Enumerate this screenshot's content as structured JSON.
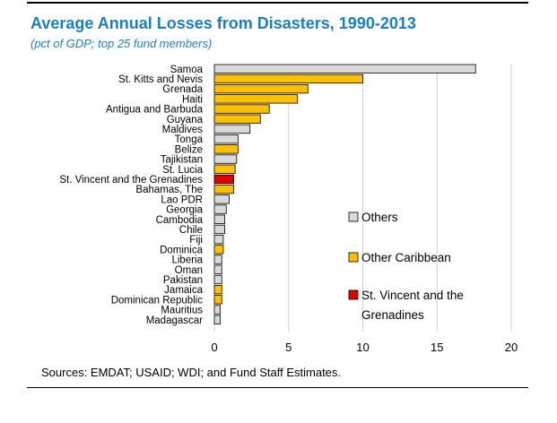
{
  "chart_data": {
    "type": "bar",
    "orientation": "horizontal",
    "title": "Average Annual Losses from Disasters, 1990-2013",
    "subtitle": "(pct of GDP; top 25 fund members)",
    "source": "Sources: EMDAT; USAID; WDI; and Fund Staff Estimates.",
    "xlim": [
      0,
      20
    ],
    "xticks": [
      0,
      5,
      10,
      15,
      20
    ],
    "grid": "vertical",
    "legend_position": "right",
    "colors": {
      "Others": "#d9d9d9",
      "Other Caribbean": "#ffc000",
      "St. Vincent and the Grenadines": "#e00000"
    },
    "legend": [
      {
        "group": "Others",
        "lines": [
          "Others"
        ]
      },
      {
        "group": "Other Caribbean",
        "lines": [
          "Other Caribbean"
        ]
      },
      {
        "group": "St. Vincent and the Grenadines",
        "lines": [
          "St. Vincent and the",
          "Grenadines"
        ]
      }
    ],
    "bars": [
      {
        "label": "Samoa",
        "value": 17.6,
        "group": "Others"
      },
      {
        "label": "St. Kitts and Nevis",
        "value": 10.0,
        "group": "Other Caribbean"
      },
      {
        "label": "Grenada",
        "value": 6.3,
        "group": "Other Caribbean"
      },
      {
        "label": "Haiti",
        "value": 5.6,
        "group": "Other Caribbean"
      },
      {
        "label": "Antigua and Barbuda",
        "value": 3.7,
        "group": "Other Caribbean"
      },
      {
        "label": "Guyana",
        "value": 3.1,
        "group": "Other Caribbean"
      },
      {
        "label": "Maldives",
        "value": 2.4,
        "group": "Others"
      },
      {
        "label": "Tonga",
        "value": 1.6,
        "group": "Others"
      },
      {
        "label": "Belize",
        "value": 1.6,
        "group": "Other Caribbean"
      },
      {
        "label": "Tajikistan",
        "value": 1.5,
        "group": "Others"
      },
      {
        "label": "St. Lucia",
        "value": 1.4,
        "group": "Other Caribbean"
      },
      {
        "label": "St. Vincent and the Grenadines",
        "value": 1.3,
        "group": "St. Vincent and the Grenadines"
      },
      {
        "label": "Bahamas, The",
        "value": 1.3,
        "group": "Other Caribbean"
      },
      {
        "label": "Lao PDR",
        "value": 1.0,
        "group": "Others"
      },
      {
        "label": "Georgia",
        "value": 0.8,
        "group": "Others"
      },
      {
        "label": "Cambodia",
        "value": 0.7,
        "group": "Others"
      },
      {
        "label": "Chile",
        "value": 0.7,
        "group": "Others"
      },
      {
        "label": "Fiji",
        "value": 0.6,
        "group": "Others"
      },
      {
        "label": "Dominica",
        "value": 0.6,
        "group": "Other Caribbean"
      },
      {
        "label": "Liberia",
        "value": 0.5,
        "group": "Others"
      },
      {
        "label": "Oman",
        "value": 0.5,
        "group": "Others"
      },
      {
        "label": "Pakistan",
        "value": 0.5,
        "group": "Others"
      },
      {
        "label": "Jamaica",
        "value": 0.5,
        "group": "Other Caribbean"
      },
      {
        "label": "Dominican Republic",
        "value": 0.5,
        "group": "Other Caribbean"
      },
      {
        "label": "Mauritius",
        "value": 0.4,
        "group": "Others"
      },
      {
        "label": "Madagascar",
        "value": 0.4,
        "group": "Others"
      }
    ]
  }
}
